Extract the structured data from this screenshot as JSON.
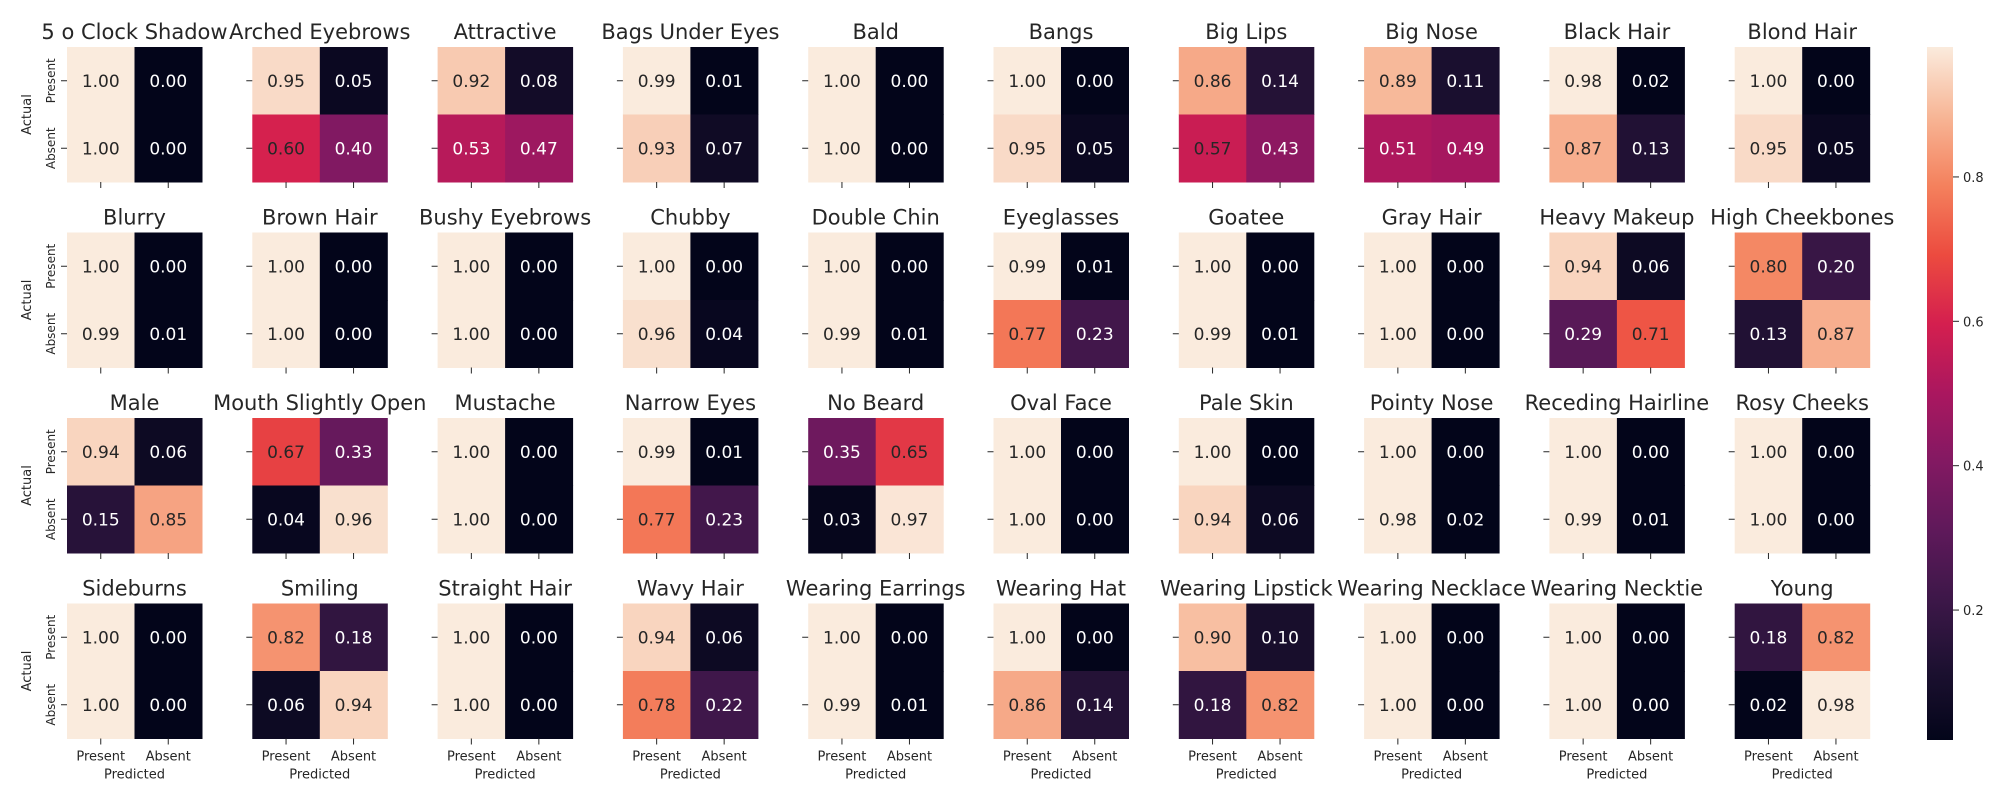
{
  "chart_data": {
    "type": "heatmap",
    "row_labels": [
      "Present",
      "Absent"
    ],
    "col_labels": [
      "Present",
      "Absent"
    ],
    "xlabel": "Predicted",
    "ylabel": "Actual",
    "colorbar": {
      "ticks": [
        0.2,
        0.4,
        0.6,
        0.8
      ],
      "range": [
        0.02,
        0.98
      ]
    },
    "panels": [
      {
        "title": "5 o Clock Shadow",
        "values": [
          [
            1.0,
            0.0
          ],
          [
            1.0,
            0.0
          ]
        ]
      },
      {
        "title": "Arched Eyebrows",
        "values": [
          [
            0.95,
            0.05
          ],
          [
            0.6,
            0.4
          ]
        ]
      },
      {
        "title": "Attractive",
        "values": [
          [
            0.92,
            0.08
          ],
          [
            0.53,
            0.47
          ]
        ]
      },
      {
        "title": "Bags Under Eyes",
        "values": [
          [
            0.99,
            0.01
          ],
          [
            0.93,
            0.07
          ]
        ]
      },
      {
        "title": "Bald",
        "values": [
          [
            1.0,
            0.0
          ],
          [
            1.0,
            0.0
          ]
        ]
      },
      {
        "title": "Bangs",
        "values": [
          [
            1.0,
            0.0
          ],
          [
            0.95,
            0.05
          ]
        ]
      },
      {
        "title": "Big Lips",
        "values": [
          [
            0.86,
            0.14
          ],
          [
            0.57,
            0.43
          ]
        ]
      },
      {
        "title": "Big Nose",
        "values": [
          [
            0.89,
            0.11
          ],
          [
            0.51,
            0.49
          ]
        ]
      },
      {
        "title": "Black Hair",
        "values": [
          [
            0.98,
            0.02
          ],
          [
            0.87,
            0.13
          ]
        ]
      },
      {
        "title": "Blond Hair",
        "values": [
          [
            1.0,
            0.0
          ],
          [
            0.95,
            0.05
          ]
        ]
      },
      {
        "title": "Blurry",
        "values": [
          [
            1.0,
            0.0
          ],
          [
            0.99,
            0.01
          ]
        ]
      },
      {
        "title": "Brown Hair",
        "values": [
          [
            1.0,
            0.0
          ],
          [
            1.0,
            0.0
          ]
        ]
      },
      {
        "title": "Bushy Eyebrows",
        "values": [
          [
            1.0,
            0.0
          ],
          [
            1.0,
            0.0
          ]
        ]
      },
      {
        "title": "Chubby",
        "values": [
          [
            1.0,
            0.0
          ],
          [
            0.96,
            0.04
          ]
        ]
      },
      {
        "title": "Double Chin",
        "values": [
          [
            1.0,
            0.0
          ],
          [
            0.99,
            0.01
          ]
        ]
      },
      {
        "title": "Eyeglasses",
        "values": [
          [
            0.99,
            0.01
          ],
          [
            0.77,
            0.23
          ]
        ]
      },
      {
        "title": "Goatee",
        "values": [
          [
            1.0,
            0.0
          ],
          [
            0.99,
            0.01
          ]
        ]
      },
      {
        "title": "Gray Hair",
        "values": [
          [
            1.0,
            0.0
          ],
          [
            1.0,
            0.0
          ]
        ]
      },
      {
        "title": "Heavy Makeup",
        "values": [
          [
            0.94,
            0.06
          ],
          [
            0.29,
            0.71
          ]
        ]
      },
      {
        "title": "High Cheekbones",
        "values": [
          [
            0.8,
            0.2
          ],
          [
            0.13,
            0.87
          ]
        ]
      },
      {
        "title": "Male",
        "values": [
          [
            0.94,
            0.06
          ],
          [
            0.15,
            0.85
          ]
        ]
      },
      {
        "title": "Mouth Slightly Open",
        "values": [
          [
            0.67,
            0.33
          ],
          [
            0.04,
            0.96
          ]
        ]
      },
      {
        "title": "Mustache",
        "values": [
          [
            1.0,
            0.0
          ],
          [
            1.0,
            0.0
          ]
        ]
      },
      {
        "title": "Narrow Eyes",
        "values": [
          [
            0.99,
            0.01
          ],
          [
            0.77,
            0.23
          ]
        ]
      },
      {
        "title": "No Beard",
        "values": [
          [
            0.35,
            0.65
          ],
          [
            0.03,
            0.97
          ]
        ]
      },
      {
        "title": "Oval Face",
        "values": [
          [
            1.0,
            0.0
          ],
          [
            1.0,
            0.0
          ]
        ]
      },
      {
        "title": "Pale Skin",
        "values": [
          [
            1.0,
            0.0
          ],
          [
            0.94,
            0.06
          ]
        ]
      },
      {
        "title": "Pointy Nose",
        "values": [
          [
            1.0,
            0.0
          ],
          [
            0.98,
            0.02
          ]
        ]
      },
      {
        "title": "Receding Hairline",
        "values": [
          [
            1.0,
            0.0
          ],
          [
            0.99,
            0.01
          ]
        ]
      },
      {
        "title": "Rosy Cheeks",
        "values": [
          [
            1.0,
            0.0
          ],
          [
            1.0,
            0.0
          ]
        ]
      },
      {
        "title": "Sideburns",
        "values": [
          [
            1.0,
            0.0
          ],
          [
            1.0,
            0.0
          ]
        ]
      },
      {
        "title": "Smiling",
        "values": [
          [
            0.82,
            0.18
          ],
          [
            0.06,
            0.94
          ]
        ]
      },
      {
        "title": "Straight Hair",
        "values": [
          [
            1.0,
            0.0
          ],
          [
            1.0,
            0.0
          ]
        ]
      },
      {
        "title": "Wavy Hair",
        "values": [
          [
            0.94,
            0.06
          ],
          [
            0.78,
            0.22
          ]
        ]
      },
      {
        "title": "Wearing Earrings",
        "values": [
          [
            1.0,
            0.0
          ],
          [
            0.99,
            0.01
          ]
        ]
      },
      {
        "title": "Wearing Hat",
        "values": [
          [
            1.0,
            0.0
          ],
          [
            0.86,
            0.14
          ]
        ]
      },
      {
        "title": "Wearing Lipstick",
        "values": [
          [
            0.9,
            0.1
          ],
          [
            0.18,
            0.82
          ]
        ]
      },
      {
        "title": "Wearing Necklace",
        "values": [
          [
            1.0,
            0.0
          ],
          [
            1.0,
            0.0
          ]
        ]
      },
      {
        "title": "Wearing Necktie",
        "values": [
          [
            1.0,
            0.0
          ],
          [
            1.0,
            0.0
          ]
        ]
      },
      {
        "title": "Young",
        "values": [
          [
            0.18,
            0.82
          ],
          [
            0.02,
            0.98
          ]
        ]
      }
    ]
  }
}
